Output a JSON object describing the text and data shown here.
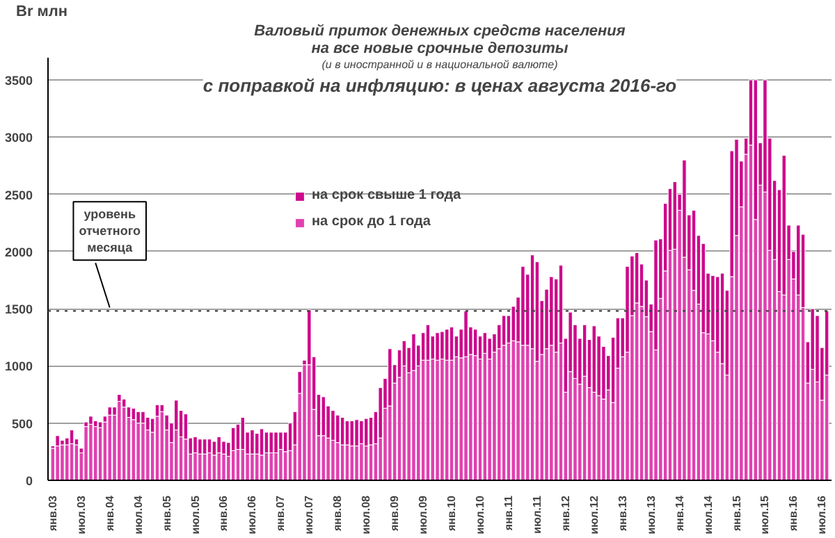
{
  "chart_data": {
    "type": "bar",
    "stacked": true,
    "title": "Валовый приток денежных средств населения\nна все новые срочные депозиты",
    "subtitle": "(и в иностранной и в национальной валюте)",
    "ylabel": "Br млн",
    "annotations": [
      "с поправкой на инфляцию: в ценах августа 2016-го"
    ],
    "categories": [
      "янв.03",
      null,
      null,
      null,
      null,
      null,
      "июл.03",
      null,
      null,
      null,
      null,
      null,
      "янв.04",
      null,
      null,
      null,
      null,
      null,
      "июл.04",
      null,
      null,
      null,
      null,
      null,
      "янв.05",
      null,
      null,
      null,
      null,
      null,
      "июл.05",
      null,
      null,
      null,
      null,
      null,
      "янв.06",
      null,
      null,
      null,
      null,
      null,
      "июл.06",
      null,
      null,
      null,
      null,
      null,
      "янв.07",
      null,
      null,
      null,
      null,
      null,
      "июл.07",
      null,
      null,
      null,
      null,
      null,
      "янв.08",
      null,
      null,
      null,
      null,
      null,
      "июл.08",
      null,
      null,
      null,
      null,
      null,
      "янв.09",
      null,
      null,
      null,
      null,
      null,
      "июл.09",
      null,
      null,
      null,
      null,
      null,
      "янв.10",
      null,
      null,
      null,
      null,
      null,
      "июл.10",
      null,
      null,
      null,
      null,
      null,
      "янв.11",
      null,
      null,
      null,
      null,
      null,
      "июл.11",
      null,
      null,
      null,
      null,
      null,
      "янв.12",
      null,
      null,
      null,
      null,
      null,
      "июл.12",
      null,
      null,
      null,
      null,
      null,
      "янв.13",
      null,
      null,
      null,
      null,
      null,
      "июл.13",
      null,
      null,
      null,
      null,
      null,
      "янв.14",
      null,
      null,
      null,
      null,
      null,
      "июл.14",
      null,
      null,
      null,
      null,
      null,
      "янв.15",
      null,
      null,
      null,
      null,
      null,
      "июл.15",
      null,
      null,
      null,
      null,
      null,
      "янв.16",
      null,
      null,
      null,
      null,
      null,
      "июл.16",
      null
    ],
    "series": [
      {
        "name": "на срок до 1 года",
        "color": "#e040b0",
        "values": [
          280,
          300,
          310,
          310,
          320,
          310,
          240,
          470,
          490,
          470,
          460,
          510,
          570,
          570,
          690,
          640,
          550,
          530,
          500,
          500,
          440,
          420,
          560,
          600,
          440,
          330,
          440,
          380,
          360,
          230,
          240,
          230,
          230,
          240,
          220,
          240,
          230,
          210,
          260,
          270,
          270,
          230,
          230,
          230,
          220,
          240,
          240,
          240,
          270,
          250,
          260,
          310,
          760,
          1010,
          1010,
          620,
          390,
          390,
          370,
          350,
          330,
          310,
          310,
          300,
          300,
          320,
          300,
          310,
          320,
          370,
          630,
          650,
          850,
          900,
          1000,
          940,
          960,
          1000,
          1050,
          1050,
          1060,
          1050,
          1060,
          1050,
          1050,
          1080,
          1070,
          1080,
          1100,
          1090,
          1060,
          1110,
          1060,
          1120,
          1150,
          1180,
          1200,
          1220,
          1210,
          1180,
          1180,
          1150,
          1040,
          1100,
          1150,
          1180,
          1120,
          1200,
          770,
          950,
          890,
          840,
          910,
          810,
          770,
          740,
          710,
          790,
          680,
          980,
          1080,
          1120,
          1440,
          1550,
          1520,
          1430,
          1300,
          1140,
          1590,
          1830,
          2010,
          2020,
          2360,
          1950,
          1840,
          1660,
          1540,
          1290,
          1280,
          1220,
          1120,
          1020,
          920,
          1780,
          2140,
          2390,
          2850,
          2930,
          2280,
          2580,
          2520,
          2010,
          1930,
          1650,
          1620,
          1930,
          1760,
          1620,
          1510,
          850,
          970,
          860,
          700,
          920
        ]
      },
      {
        "name": "на срок свыше 1 года",
        "color": "#cc0a8c",
        "values": [
          20,
          90,
          40,
          60,
          120,
          50,
          40,
          40,
          70,
          50,
          50,
          50,
          70,
          70,
          60,
          70,
          90,
          100,
          100,
          100,
          110,
          120,
          100,
          60,
          130,
          170,
          260,
          230,
          220,
          140,
          140,
          130,
          130,
          120,
          120,
          140,
          110,
          120,
          200,
          220,
          280,
          190,
          210,
          180,
          230,
          180,
          180,
          180,
          150,
          170,
          240,
          290,
          190,
          40,
          480,
          460,
          360,
          340,
          280,
          260,
          240,
          240,
          210,
          220,
          230,
          200,
          240,
          240,
          280,
          440,
          260,
          500,
          160,
          240,
          220,
          220,
          320,
          180,
          240,
          310,
          200,
          240,
          240,
          270,
          290,
          180,
          250,
          400,
          240,
          230,
          200,
          180,
          180,
          160,
          210,
          260,
          240,
          300,
          390,
          690,
          620,
          820,
          870,
          470,
          520,
          600,
          640,
          680,
          470,
          520,
          470,
          400,
          450,
          420,
          580,
          520,
          460,
          300,
          570,
          440,
          340,
          750,
          520,
          440,
          370,
          320,
          240,
          960,
          520,
          590,
          540,
          590,
          140,
          850,
          480,
          700,
          600,
          780,
          530,
          570,
          660,
          790,
          740,
          1100,
          840,
          400,
          140,
          570,
          1220,
          370,
          980,
          980,
          690,
          890,
          1220,
          300,
          240,
          610,
          640,
          360,
          530,
          580,
          460,
          560
        ]
      }
    ],
    "ylim": [
      0,
      3690
    ],
    "yticks": [
      0,
      500,
      1000,
      1500,
      2000,
      2500,
      3000,
      3500
    ],
    "grid": "y",
    "legend": "top left",
    "ref_lines": [
      {
        "axis": "y",
        "value": 1480,
        "label": "уровень отчетного месяца",
        "color": "#404040",
        "line_style": "dotted"
      }
    ]
  }
}
